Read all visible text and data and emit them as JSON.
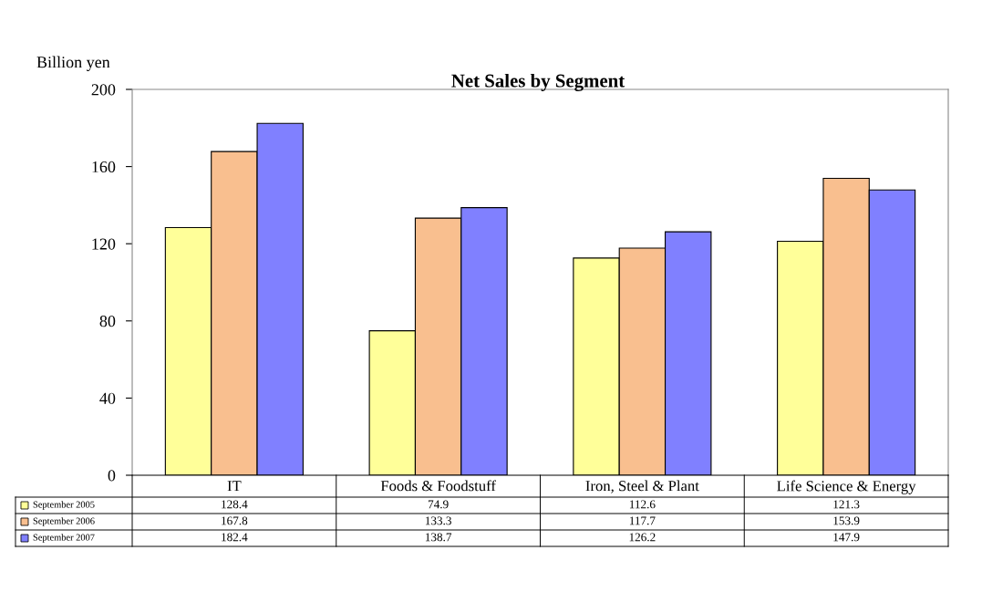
{
  "chart_data": {
    "type": "bar",
    "title": "Net Sales by Segment",
    "ylabel": "Billion yen",
    "categories": [
      "IT",
      "Foods & Foodstuff",
      "Iron, Steel & Plant",
      "Life Science & Energy"
    ],
    "series": [
      {
        "name": "September 2005",
        "color": "#ffff99",
        "values": [
          128.4,
          74.9,
          112.6,
          121.3
        ]
      },
      {
        "name": "September 2006",
        "color": "#f9bf8f",
        "values": [
          167.8,
          133.3,
          117.7,
          153.9
        ]
      },
      {
        "name": "September 2007",
        "color": "#8080ff",
        "values": [
          182.4,
          138.7,
          126.2,
          147.9
        ]
      }
    ],
    "ylim": [
      0,
      200
    ],
    "yticks": [
      0,
      40,
      80,
      120,
      160,
      200
    ],
    "grid": false,
    "legend": "bottom",
    "data_labels": true
  }
}
